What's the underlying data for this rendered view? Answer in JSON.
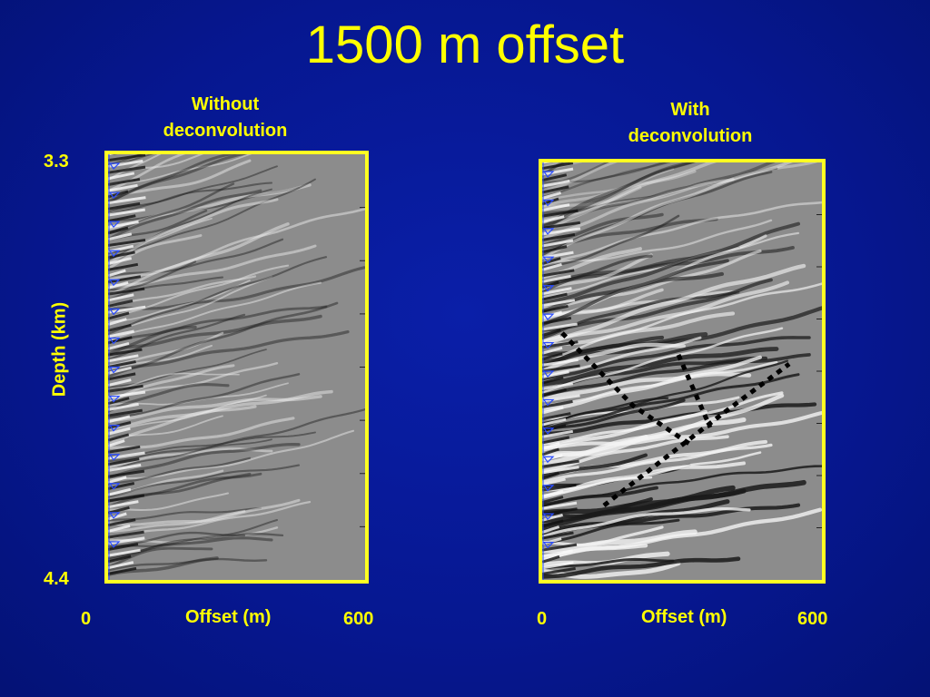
{
  "slide": {
    "title": "1500 m offset"
  },
  "panels": [
    {
      "id": "without",
      "label_line1": "Without",
      "label_line2": "deconvolution",
      "x_label": "Offset (m)",
      "x_min": "0",
      "x_max": "600",
      "overlay_lines": false
    },
    {
      "id": "with",
      "label_line1": "With",
      "label_line2": "deconvolution",
      "x_label": "Offset (m)",
      "x_min": "0",
      "x_max": "600",
      "overlay_lines": true
    }
  ],
  "y_axis": {
    "label": "Depth (km)",
    "top": "3.3",
    "bottom": "4.4"
  },
  "colors": {
    "background": "#06169a",
    "text": "#ffff00",
    "frame": "#ffff22",
    "marker": "#2a4cff"
  }
}
